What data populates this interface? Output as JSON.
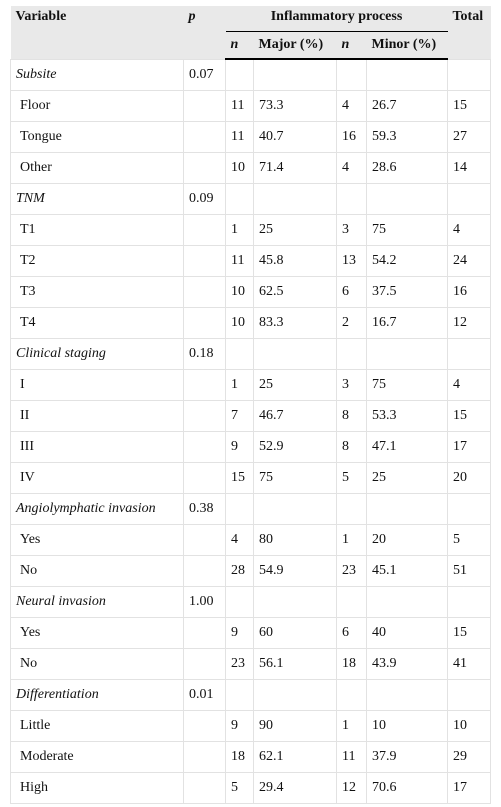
{
  "header": {
    "variable": "Variable",
    "p": "p",
    "group": "Inflammatory process",
    "total": "Total",
    "n1": "n",
    "major": "Major (%)",
    "n2": "n",
    "minor": "Minor (%)"
  },
  "rows": [
    {
      "group": "Subsite",
      "p": "0.07"
    },
    {
      "label": "Floor",
      "values": [
        "11",
        "73.3",
        "4",
        "26.7",
        "15"
      ]
    },
    {
      "label": "Tongue",
      "values": [
        "11",
        "40.7",
        "16",
        "59.3",
        "27"
      ]
    },
    {
      "label": "Other",
      "values": [
        "10",
        "71.4",
        "4",
        "28.6",
        "14"
      ]
    },
    {
      "group": "TNM",
      "p": "0.09"
    },
    {
      "label": "T1",
      "values": [
        "1",
        "25",
        "3",
        "75",
        "4"
      ]
    },
    {
      "label": "T2",
      "values": [
        "11",
        "45.8",
        "13",
        "54.2",
        "24"
      ]
    },
    {
      "label": "T3",
      "values": [
        "10",
        "62.5",
        "6",
        "37.5",
        "16"
      ]
    },
    {
      "label": "T4",
      "values": [
        "10",
        "83.3",
        "2",
        "16.7",
        "12"
      ]
    },
    {
      "group": "Clinical staging",
      "p": "0.18"
    },
    {
      "label": "I",
      "values": [
        "1",
        "25",
        "3",
        "75",
        "4"
      ]
    },
    {
      "label": "II",
      "values": [
        "7",
        "46.7",
        "8",
        "53.3",
        "15"
      ]
    },
    {
      "label": "III",
      "values": [
        "9",
        "52.9",
        "8",
        "47.1",
        "17"
      ]
    },
    {
      "label": "IV",
      "values": [
        "15",
        "75",
        "5",
        "25",
        "20"
      ]
    },
    {
      "group": "Angiolymphatic invasion",
      "p": "0.38"
    },
    {
      "label": "Yes",
      "values": [
        "4",
        "80",
        "1",
        "20",
        "5"
      ]
    },
    {
      "label": "No",
      "values": [
        "28",
        "54.9",
        "23",
        "45.1",
        "51"
      ]
    },
    {
      "group": "Neural invasion",
      "p": "1.00"
    },
    {
      "label": "Yes",
      "values": [
        "9",
        "60",
        "6",
        "40",
        "15"
      ]
    },
    {
      "label": "No",
      "values": [
        "23",
        "56.1",
        "18",
        "43.9",
        "41"
      ]
    },
    {
      "group": "Differentiation",
      "p": "0.01"
    },
    {
      "label": "Little",
      "values": [
        "9",
        "90",
        "1",
        "10",
        "10"
      ]
    },
    {
      "label": "Moderate",
      "values": [
        "18",
        "62.1",
        "11",
        "37.9",
        "29"
      ]
    },
    {
      "label": "High",
      "values": [
        "5",
        "29.4",
        "12",
        "70.6",
        "17"
      ]
    }
  ]
}
